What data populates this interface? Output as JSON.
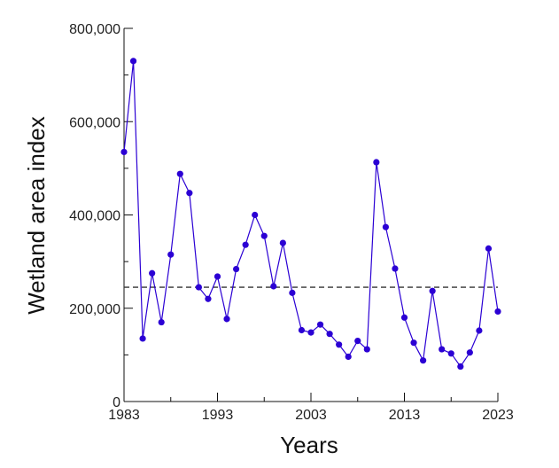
{
  "chart_data": {
    "type": "line",
    "title": "",
    "xlabel": "Years",
    "ylabel": "Wetland area index",
    "xlim": [
      1983,
      2023
    ],
    "ylim": [
      0,
      800000
    ],
    "x_ticks": [
      1983,
      1993,
      2003,
      2013,
      2023
    ],
    "y_ticks": [
      0,
      200000,
      400000,
      600000,
      800000
    ],
    "y_tick_labels": [
      "0",
      "200,000",
      "400,000",
      "600,000",
      "800,000"
    ],
    "grid": false,
    "legend": "none",
    "reference_line": {
      "y": 245000,
      "style": "dashed"
    },
    "series": [
      {
        "color": "#2b00d4",
        "x": [
          1983,
          1984,
          1985,
          1986,
          1987,
          1988,
          1989,
          1990,
          1991,
          1992,
          1993,
          1994,
          1995,
          1996,
          1997,
          1998,
          1999,
          2000,
          2001,
          2002,
          2003,
          2004,
          2005,
          2006,
          2007,
          2008,
          2009,
          2010,
          2011,
          2012,
          2013,
          2014,
          2015,
          2016,
          2017,
          2018,
          2019,
          2020,
          2021,
          2022,
          2023
        ],
        "y": [
          535000,
          730000,
          135000,
          275000,
          170000,
          315000,
          488000,
          447000,
          245000,
          220000,
          268000,
          177000,
          284000,
          336000,
          400000,
          355000,
          247000,
          340000,
          233000,
          153000,
          148000,
          165000,
          145000,
          122000,
          96000,
          130000,
          112000,
          513000,
          374000,
          285000,
          180000,
          126000,
          88000,
          237000,
          112000,
          103000,
          75000,
          105000,
          152000,
          328000,
          193000
        ]
      }
    ]
  }
}
